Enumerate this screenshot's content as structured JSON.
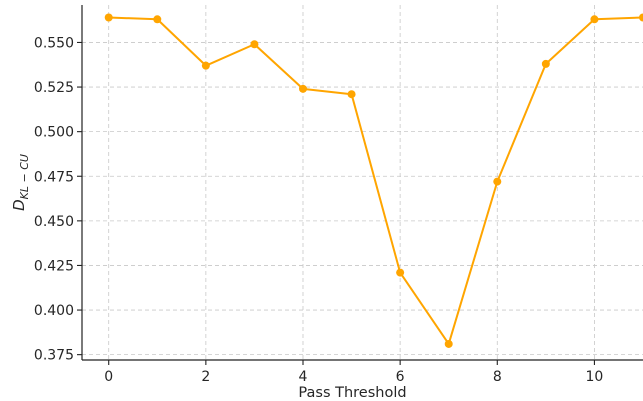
{
  "chart_data": {
    "type": "line",
    "title": "",
    "xlabel": "Pass Threshold",
    "ylabel": {
      "main": "D",
      "subscript": "KL − CU"
    },
    "x": [
      0,
      1,
      2,
      3,
      4,
      5,
      6,
      7,
      8,
      9,
      10,
      11
    ],
    "series": [
      {
        "values": [
          0.564,
          0.563,
          0.537,
          0.549,
          0.524,
          0.521,
          0.421,
          0.381,
          0.472,
          0.538,
          0.563,
          0.564
        ],
        "color": "#FFA500",
        "marker": "circle"
      }
    ],
    "xlim": [
      -0.55,
      11.0
    ],
    "ylim": [
      0.372,
      0.571
    ],
    "xticks": [
      0,
      2,
      4,
      6,
      8,
      10
    ],
    "xtick_labels": [
      "0",
      "2",
      "4",
      "6",
      "8",
      "10"
    ],
    "yticks": [
      0.375,
      0.4,
      0.425,
      0.45,
      0.475,
      0.5,
      0.525,
      0.55
    ],
    "ytick_labels": [
      "0.375",
      "0.400",
      "0.425",
      "0.450",
      "0.475",
      "0.500",
      "0.525",
      "0.550"
    ],
    "grid": true,
    "legend": "none"
  }
}
